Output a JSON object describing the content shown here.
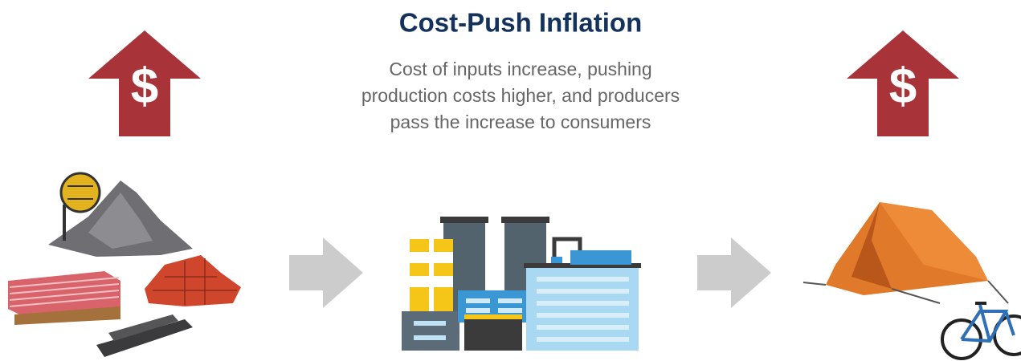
{
  "header": {
    "title": "Cost-Push Inflation",
    "subtitle_lines": [
      "Cost of inputs increase, pushing",
      "production costs higher, and producers",
      "pass the increase to consumers"
    ]
  },
  "price_arrows": [
    {
      "symbol": "$"
    },
    {
      "symbol": "$"
    }
  ]
}
